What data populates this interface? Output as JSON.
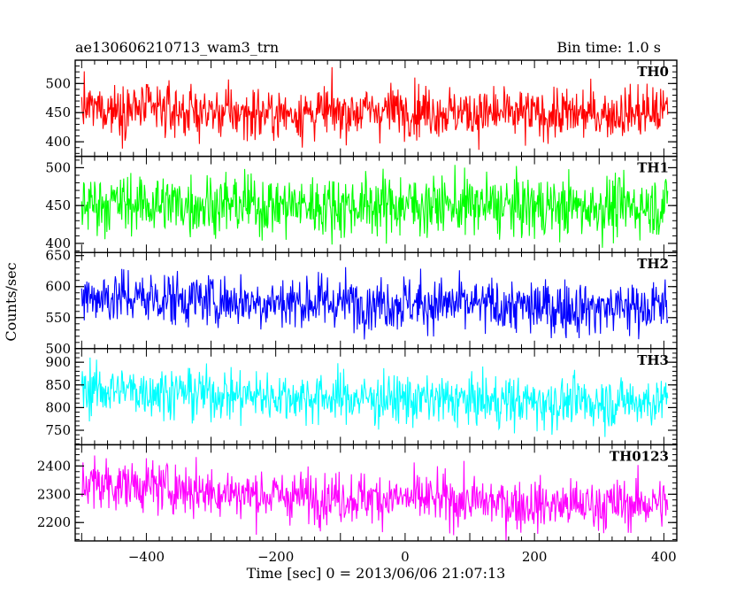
{
  "header": {
    "left": "ae130606210713_wam3_trn",
    "right": "Bin time: 1.0 s"
  },
  "chart_data": {
    "type": "line",
    "xlabel": "Time [sec] 0 = 2013/06/06 21:07:13",
    "ylabel": "Counts/sec",
    "xlim": [
      -510,
      420
    ],
    "x_ticks": [
      -400,
      -200,
      0,
      200,
      400
    ],
    "x_data_range": [
      -500,
      406
    ],
    "bin_time_s": 1.0,
    "panels": [
      {
        "name": "TH0",
        "color": "#ff0000",
        "ylim": [
          375,
          540
        ],
        "y_ticks": [
          400,
          450,
          500
        ],
        "x": [
          -500,
          -400,
          -300,
          -200,
          -100,
          0,
          100,
          200,
          300,
          406
        ],
        "y": [
          458,
          456,
          450,
          448,
          451,
          456,
          449,
          446,
          448,
          452
        ],
        "noise_sd": 22
      },
      {
        "name": "TH1",
        "color": "#00ff00",
        "ylim": [
          388,
          515
        ],
        "y_ticks": [
          400,
          450,
          500
        ],
        "x": [
          -500,
          -400,
          -300,
          -200,
          -100,
          0,
          100,
          200,
          300,
          406
        ],
        "y": [
          454,
          452,
          452,
          450,
          450,
          451,
          450,
          448,
          448,
          450
        ],
        "noise_sd": 20
      },
      {
        "name": "TH2",
        "color": "#0000ff",
        "ylim": [
          500,
          655
        ],
        "y_ticks": [
          500,
          550,
          600,
          650
        ],
        "x": [
          -500,
          -400,
          -300,
          -200,
          -100,
          0,
          100,
          200,
          300,
          406
        ],
        "y": [
          585,
          582,
          578,
          575,
          575,
          574,
          570,
          566,
          566,
          568
        ],
        "noise_sd": 22
      },
      {
        "name": "TH3",
        "color": "#00ffff",
        "ylim": [
          718,
          930
        ],
        "y_ticks": [
          750,
          800,
          850,
          900
        ],
        "x": [
          -500,
          -400,
          -300,
          -200,
          -100,
          0,
          100,
          200,
          300,
          406
        ],
        "y": [
          840,
          837,
          830,
          825,
          822,
          818,
          815,
          812,
          812,
          815
        ],
        "noise_sd": 28
      },
      {
        "name": "TH0123",
        "color": "#ff00ff",
        "ylim": [
          2135,
          2475
        ],
        "y_ticks": [
          2200,
          2300,
          2400
        ],
        "x": [
          -500,
          -400,
          -300,
          -200,
          -100,
          0,
          100,
          200,
          300,
          406
        ],
        "y": [
          2340,
          2330,
          2310,
          2295,
          2290,
          2285,
          2275,
          2262,
          2262,
          2270
        ],
        "noise_sd": 45
      }
    ]
  }
}
